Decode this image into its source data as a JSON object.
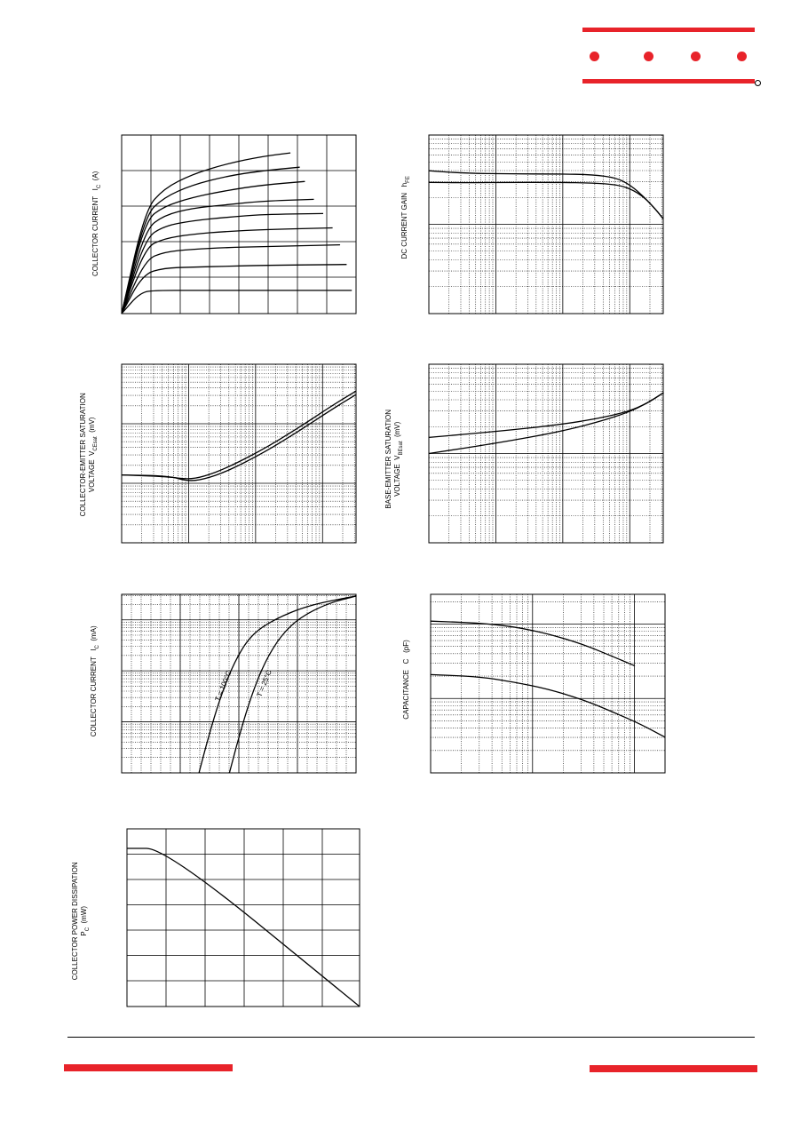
{
  "brand": {
    "color": "#e8232a",
    "text_color": "#000000"
  },
  "chart_data": [
    {
      "id": "ic-vce",
      "type": "line",
      "title": "",
      "ylabel": {
        "main": "COLLECTOR CURRENT",
        "symbol": "I",
        "sub": "C",
        "unit": "(A)"
      },
      "xlabel": "",
      "grid": true,
      "series": [
        {
          "values": [
            [
              0,
              0
            ],
            [
              0.1,
              0.58
            ],
            [
              0.18,
              0.7
            ],
            [
              0.3,
              0.78
            ],
            [
              0.45,
              0.84
            ],
            [
              0.6,
              0.88
            ],
            [
              0.72,
              0.9
            ]
          ]
        },
        {
          "values": [
            [
              0,
              0
            ],
            [
              0.1,
              0.55
            ],
            [
              0.18,
              0.65
            ],
            [
              0.3,
              0.72
            ],
            [
              0.45,
              0.77
            ],
            [
              0.6,
              0.8
            ],
            [
              0.76,
              0.82
            ]
          ]
        },
        {
          "values": [
            [
              0,
              0
            ],
            [
              0.1,
              0.52
            ],
            [
              0.18,
              0.6
            ],
            [
              0.3,
              0.65
            ],
            [
              0.45,
              0.69
            ],
            [
              0.6,
              0.72
            ],
            [
              0.78,
              0.74
            ]
          ]
        },
        {
          "values": [
            [
              0,
              0
            ],
            [
              0.1,
              0.47
            ],
            [
              0.18,
              0.55
            ],
            [
              0.3,
              0.59
            ],
            [
              0.45,
              0.61
            ],
            [
              0.6,
              0.63
            ],
            [
              0.82,
              0.64
            ]
          ]
        },
        {
          "values": [
            [
              0,
              0
            ],
            [
              0.1,
              0.42
            ],
            [
              0.18,
              0.49
            ],
            [
              0.3,
              0.52
            ],
            [
              0.45,
              0.54
            ],
            [
              0.6,
              0.555
            ],
            [
              0.86,
              0.56
            ]
          ]
        },
        {
          "values": [
            [
              0,
              0
            ],
            [
              0.1,
              0.37
            ],
            [
              0.18,
              0.42
            ],
            [
              0.3,
              0.445
            ],
            [
              0.45,
              0.46
            ],
            [
              0.6,
              0.47
            ],
            [
              0.9,
              0.48
            ]
          ]
        },
        {
          "values": [
            [
              0,
              0
            ],
            [
              0.1,
              0.3
            ],
            [
              0.18,
              0.345
            ],
            [
              0.3,
              0.36
            ],
            [
              0.45,
              0.37
            ],
            [
              0.6,
              0.375
            ],
            [
              0.93,
              0.385
            ]
          ]
        },
        {
          "values": [
            [
              0,
              0
            ],
            [
              0.09,
              0.22
            ],
            [
              0.18,
              0.255
            ],
            [
              0.3,
              0.26
            ],
            [
              0.45,
              0.265
            ],
            [
              0.6,
              0.27
            ],
            [
              0.96,
              0.275
            ]
          ]
        },
        {
          "values": [
            [
              0,
              0
            ],
            [
              0.08,
              0.12
            ],
            [
              0.15,
              0.13
            ],
            [
              0.3,
              0.13
            ],
            [
              0.6,
              0.13
            ],
            [
              0.98,
              0.13
            ]
          ]
        }
      ]
    },
    {
      "id": "hfe",
      "type": "line",
      "title": "",
      "ylabel": {
        "main": "DC CURRENT GAIN",
        "symbol": "h",
        "sub": "FE",
        "unit": ""
      },
      "xlabel": "",
      "grid": true,
      "series": [
        {
          "values": [
            [
              0,
              0.8
            ],
            [
              0.15,
              0.786
            ],
            [
              0.35,
              0.782
            ],
            [
              0.55,
              0.782
            ],
            [
              0.7,
              0.778
            ],
            [
              0.8,
              0.76
            ],
            [
              0.86,
              0.72
            ],
            [
              0.92,
              0.65
            ],
            [
              0.97,
              0.58
            ],
            [
              1.0,
              0.53
            ]
          ]
        },
        {
          "values": [
            [
              0,
              0.735
            ],
            [
              0.15,
              0.733
            ],
            [
              0.35,
              0.735
            ],
            [
              0.55,
              0.735
            ],
            [
              0.7,
              0.732
            ],
            [
              0.8,
              0.722
            ],
            [
              0.86,
              0.7
            ],
            [
              0.92,
              0.65
            ],
            [
              0.97,
              0.58
            ],
            [
              1.0,
              0.53
            ]
          ]
        }
      ]
    },
    {
      "id": "vcesat",
      "type": "line",
      "title": "",
      "ylabel": {
        "line1": "COLLECTOR-EMITTER SATURATION",
        "line2": "VOLTAGE",
        "symbol": "V",
        "sub": "CEsat",
        "unit": "(mV)"
      },
      "xlabel": "",
      "grid": true,
      "series": [
        {
          "values": [
            [
              0,
              0.38
            ],
            [
              0.2,
              0.37
            ],
            [
              0.28,
              0.355
            ],
            [
              0.35,
              0.37
            ],
            [
              0.45,
              0.42
            ],
            [
              0.6,
              0.52
            ],
            [
              0.75,
              0.64
            ],
            [
              0.9,
              0.77
            ],
            [
              1.0,
              0.85
            ]
          ]
        },
        {
          "values": [
            [
              0,
              0.38
            ],
            [
              0.2,
              0.375
            ],
            [
              0.28,
              0.345
            ],
            [
              0.35,
              0.355
            ],
            [
              0.45,
              0.4
            ],
            [
              0.6,
              0.5
            ],
            [
              0.75,
              0.62
            ],
            [
              0.9,
              0.75
            ],
            [
              1.0,
              0.83
            ]
          ]
        }
      ]
    },
    {
      "id": "vbesat",
      "type": "line",
      "title": "",
      "ylabel": {
        "line1": "BASE-EMITTER SATURATION",
        "line2": "VOLTAGE",
        "symbol": "V",
        "sub": "BEsat",
        "unit": "(mV)"
      },
      "xlabel": "",
      "grid": true,
      "series": [
        {
          "values": [
            [
              0,
              0.59
            ],
            [
              0.3,
              0.625
            ],
            [
              0.55,
              0.66
            ],
            [
              0.72,
              0.695
            ],
            [
              0.85,
              0.735
            ],
            [
              0.93,
              0.78
            ],
            [
              1.0,
              0.84
            ]
          ]
        },
        {
          "values": [
            [
              0,
              0.5
            ],
            [
              0.3,
              0.56
            ],
            [
              0.55,
              0.62
            ],
            [
              0.72,
              0.675
            ],
            [
              0.85,
              0.73
            ],
            [
              0.93,
              0.78
            ],
            [
              1.0,
              0.84
            ]
          ]
        }
      ]
    },
    {
      "id": "ic-vbe",
      "type": "line",
      "title": "",
      "ylabel": {
        "main": "COLLECTOR CURRENT",
        "symbol": "I",
        "sub": "C",
        "unit": "(mA)"
      },
      "xlabel": "",
      "grid": true,
      "annotations": [
        "T = 100°C",
        "T = 25°C"
      ],
      "series": [
        {
          "name": "T = 100°C",
          "values": [
            [
              0.33,
              0
            ],
            [
              0.37,
              0.2
            ],
            [
              0.42,
              0.42
            ],
            [
              0.48,
              0.62
            ],
            [
              0.55,
              0.77
            ],
            [
              0.65,
              0.86
            ],
            [
              0.8,
              0.94
            ],
            [
              1.0,
              0.99
            ]
          ]
        },
        {
          "name": "T = 25°C",
          "values": [
            [
              0.46,
              0
            ],
            [
              0.5,
              0.2
            ],
            [
              0.55,
              0.42
            ],
            [
              0.61,
              0.62
            ],
            [
              0.68,
              0.77
            ],
            [
              0.76,
              0.87
            ],
            [
              0.88,
              0.95
            ],
            [
              1.0,
              0.99
            ]
          ]
        }
      ]
    },
    {
      "id": "capacitance",
      "type": "line",
      "title": "",
      "ylabel": {
        "main": "CAPACITANCE",
        "symbol": "C",
        "sub": "",
        "unit": "(pF)"
      },
      "xlabel": "",
      "grid": true,
      "series": [
        {
          "values": [
            [
              0,
              0.85
            ],
            [
              0.2,
              0.84
            ],
            [
              0.35,
              0.82
            ],
            [
              0.5,
              0.78
            ],
            [
              0.65,
              0.72
            ],
            [
              0.78,
              0.65
            ],
            [
              0.87,
              0.6
            ]
          ]
        },
        {
          "values": [
            [
              0,
              0.55
            ],
            [
              0.2,
              0.54
            ],
            [
              0.35,
              0.51
            ],
            [
              0.5,
              0.47
            ],
            [
              0.65,
              0.41
            ],
            [
              0.78,
              0.34
            ],
            [
              0.9,
              0.27
            ],
            [
              1.0,
              0.2
            ]
          ]
        }
      ]
    },
    {
      "id": "pc-ta",
      "type": "line",
      "title": "",
      "ylabel": {
        "line1": "COLLECTOR POWER DISSIPATION",
        "symbol": "P",
        "sub": "C",
        "unit": "(mW)"
      },
      "xlabel": "",
      "grid": true,
      "series": [
        {
          "values": [
            [
              0,
              0.89
            ],
            [
              0.167,
              0.89
            ],
            [
              1.0,
              0
            ]
          ]
        }
      ]
    }
  ]
}
